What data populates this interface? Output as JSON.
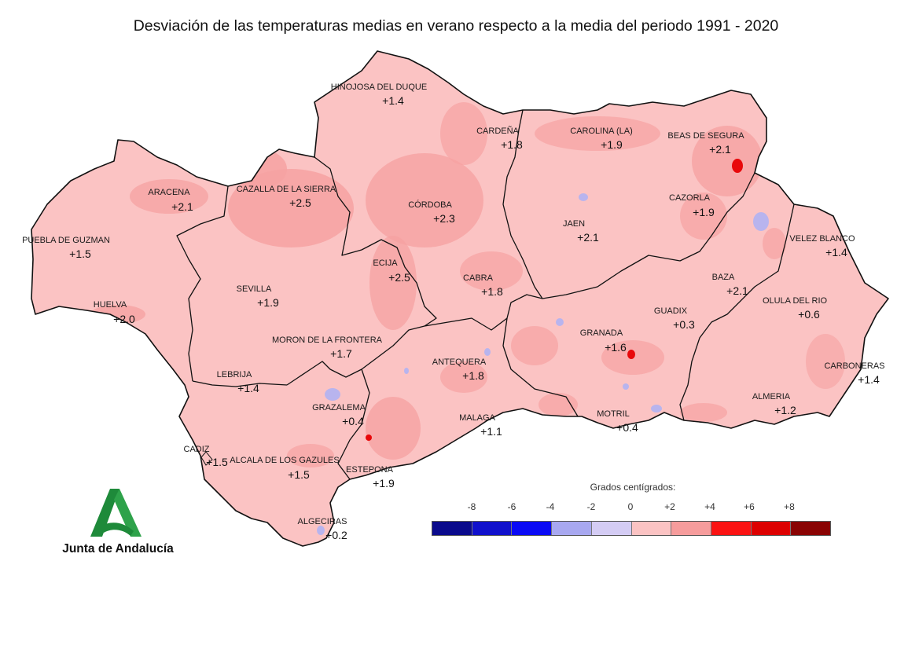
{
  "title": "Desviación de las temperaturas medias en verano respecto a la media del periodo 1991 - 2020",
  "legend": {
    "caption": "Grados centígrados:",
    "ticks": [
      "-8",
      "-6",
      "-4",
      "-2",
      "0",
      "+2",
      "+4",
      "+6",
      "+8"
    ],
    "colors": [
      "#0a0a8c",
      "#1010cc",
      "#0a0af5",
      "#a8a8f0",
      "#d4ccf4",
      "#fbc3c3",
      "#f69c9c",
      "#fb1212",
      "#dd0000",
      "#8a0303"
    ]
  },
  "colors": {
    "base": "#fbc3c3",
    "warm": "#f6a2a2",
    "hot": "#e8080a",
    "cool": "#b8b4ee",
    "border": "#111111"
  },
  "stations": [
    {
      "name": "HINOJOSA DEL DUQUE",
      "value": "+1.4"
    },
    {
      "name": "CARDEÑA",
      "value": "+1.8"
    },
    {
      "name": "CAROLINA (LA)",
      "value": "+1.9"
    },
    {
      "name": "BEAS DE SEGURA",
      "value": "+2.1"
    },
    {
      "name": "ARACENA",
      "value": "+2.1"
    },
    {
      "name": "CAZALLA DE LA SIERRA",
      "value": "+2.5"
    },
    {
      "name": "CÓRDOBA",
      "value": "+2.3"
    },
    {
      "name": "CAZORLA",
      "value": "+1.9"
    },
    {
      "name": "JAEN",
      "value": "+2.1"
    },
    {
      "name": "PUEBLA DE GUZMAN",
      "value": "+1.5"
    },
    {
      "name": "ECIJA",
      "value": "+2.5"
    },
    {
      "name": "VELEZ BLANCO",
      "value": "+1.4"
    },
    {
      "name": "CABRA",
      "value": "+1.8"
    },
    {
      "name": "BAZA",
      "value": "+2.1"
    },
    {
      "name": "SEVILLA",
      "value": "+1.9"
    },
    {
      "name": "OLULA DEL RIO",
      "value": "+0.6"
    },
    {
      "name": "HUELVA",
      "value": "+2.0"
    },
    {
      "name": "GUADIX",
      "value": "+0.3"
    },
    {
      "name": "GRANADA",
      "value": "+1.6"
    },
    {
      "name": "MORON DE LA FRONTERA",
      "value": "+1.7"
    },
    {
      "name": "ANTEQUERA",
      "value": "+1.8"
    },
    {
      "name": "CARBONERAS",
      "value": "+1.4"
    },
    {
      "name": "LEBRIJA",
      "value": "+1.4"
    },
    {
      "name": "ALMERIA",
      "value": "+1.2"
    },
    {
      "name": "GRAZALEMA",
      "value": "+0.4"
    },
    {
      "name": "MALAGA",
      "value": "+1.1"
    },
    {
      "name": "MOTRIL",
      "value": "+0.4"
    },
    {
      "name": "CADIZ",
      "value": "+1.5"
    },
    {
      "name": "ALCALA DE LOS GAZULES",
      "value": "+1.5"
    },
    {
      "name": "ESTEPONA",
      "value": "+1.9"
    },
    {
      "name": "ALGECIRAS",
      "value": "+0.2"
    }
  ],
  "logo": {
    "text": "Junta de Andalucía"
  }
}
